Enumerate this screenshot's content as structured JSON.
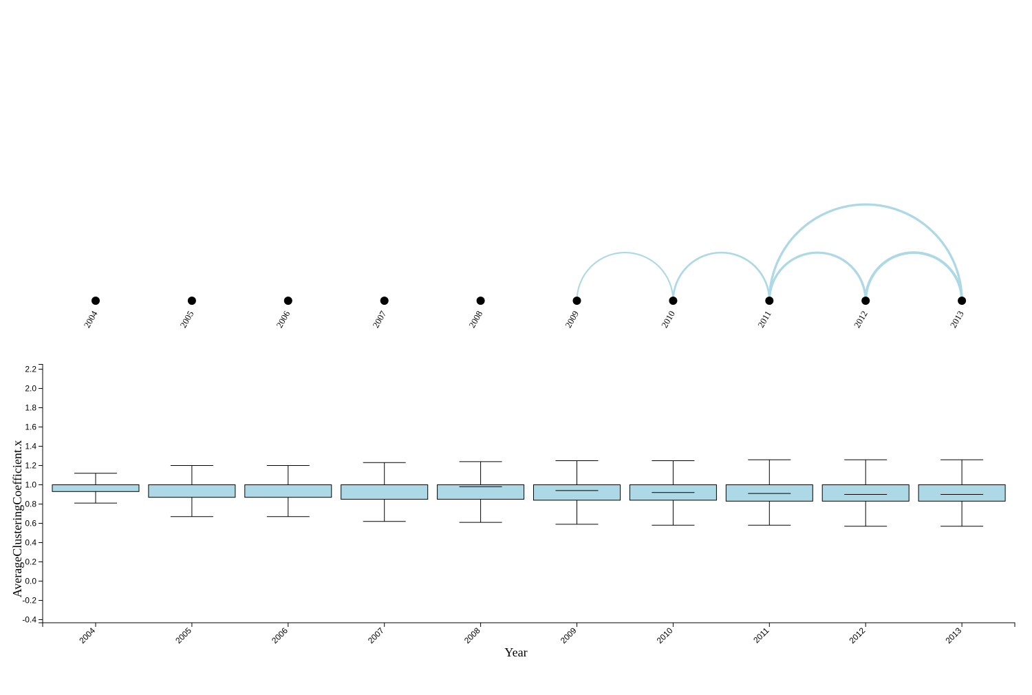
{
  "colors": {
    "box_fill": "#add8e6",
    "arc_stroke": "#add8e6",
    "node_fill": "#000000",
    "axis": "#000000"
  },
  "chart_data": [
    {
      "type": "arc",
      "nodes": [
        "2004",
        "2005",
        "2006",
        "2007",
        "2008",
        "2009",
        "2010",
        "2011",
        "2012",
        "2013"
      ],
      "links": [
        {
          "source": "2009",
          "target": "2010",
          "weight": 1
        },
        {
          "source": "2010",
          "target": "2011",
          "weight": 2
        },
        {
          "source": "2011",
          "target": "2012",
          "weight": 3
        },
        {
          "source": "2012",
          "target": "2013",
          "weight": 4
        },
        {
          "source": "2011",
          "target": "2013",
          "weight": 3
        }
      ]
    },
    {
      "type": "box",
      "xlabel": "Year",
      "ylabel": "AverageClusteringCoefficient.x",
      "ylim": [
        -0.45,
        2.25
      ],
      "yticks": [
        -0.4,
        -0.2,
        0.0,
        0.2,
        0.4,
        0.6,
        0.8,
        1.0,
        1.2,
        1.4,
        1.6,
        1.8,
        2.0,
        2.2
      ],
      "ytick_labels": [
        "-0.4",
        "-0.2",
        "0.0",
        "0.2",
        "0.4",
        "0.6",
        "0.8",
        "1.0",
        "1.2",
        "1.4",
        "1.6",
        "1.8",
        "2.0",
        "2.2"
      ],
      "categories": [
        "2004",
        "2005",
        "2006",
        "2007",
        "2008",
        "2009",
        "2010",
        "2011",
        "2012",
        "2013"
      ],
      "boxes": [
        {
          "whisker_low": 0.81,
          "q1": 0.93,
          "median": 1.0,
          "q3": 1.0,
          "whisker_high": 1.12
        },
        {
          "whisker_low": 0.67,
          "q1": 0.87,
          "median": 1.0,
          "q3": 1.0,
          "whisker_high": 1.2
        },
        {
          "whisker_low": 0.67,
          "q1": 0.87,
          "median": 1.0,
          "q3": 1.0,
          "whisker_high": 1.2
        },
        {
          "whisker_low": 0.62,
          "q1": 0.85,
          "median": 1.0,
          "q3": 1.0,
          "whisker_high": 1.23
        },
        {
          "whisker_low": 0.61,
          "q1": 0.85,
          "median": 0.98,
          "q3": 1.0,
          "whisker_high": 1.24
        },
        {
          "whisker_low": 0.59,
          "q1": 0.84,
          "median": 0.94,
          "q3": 1.0,
          "whisker_high": 1.25
        },
        {
          "whisker_low": 0.58,
          "q1": 0.84,
          "median": 0.92,
          "q3": 1.0,
          "whisker_high": 1.25
        },
        {
          "whisker_low": 0.58,
          "q1": 0.83,
          "median": 0.91,
          "q3": 1.0,
          "whisker_high": 1.26
        },
        {
          "whisker_low": 0.57,
          "q1": 0.83,
          "median": 0.9,
          "q3": 1.0,
          "whisker_high": 1.26
        },
        {
          "whisker_low": 0.57,
          "q1": 0.83,
          "median": 0.9,
          "q3": 1.0,
          "whisker_high": 1.26
        }
      ],
      "grid": false
    }
  ]
}
